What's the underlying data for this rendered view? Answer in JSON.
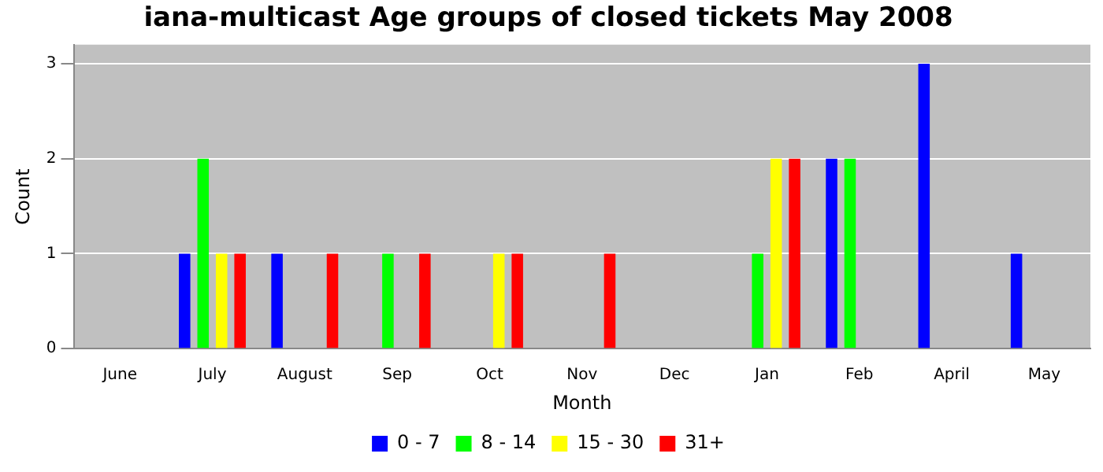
{
  "chart_data": {
    "type": "bar",
    "title": "iana-multicast Age groups of closed tickets May 2008",
    "xlabel": "Month",
    "ylabel": "Count",
    "categories": [
      "June",
      "July",
      "August",
      "Sep",
      "Oct",
      "Nov",
      "Dec",
      "Jan",
      "Feb",
      "April",
      "May"
    ],
    "series": [
      {
        "name": "0 - 7",
        "color": "#0000ff",
        "values": [
          0,
          1,
          1,
          0,
          0,
          0,
          0,
          0,
          2,
          3,
          1
        ]
      },
      {
        "name": "8 - 14",
        "color": "#00ff00",
        "values": [
          0,
          2,
          0,
          1,
          0,
          0,
          0,
          1,
          2,
          0,
          0
        ]
      },
      {
        "name": "15 - 30",
        "color": "#ffff00",
        "values": [
          0,
          1,
          0,
          0,
          1,
          0,
          0,
          2,
          0,
          0,
          0
        ]
      },
      {
        "name": "31+",
        "color": "#ff0000",
        "values": [
          0,
          1,
          1,
          1,
          1,
          1,
          0,
          2,
          0,
          0,
          0
        ]
      }
    ],
    "ylim": [
      0,
      3.2
    ],
    "yticks": [
      0,
      1,
      2,
      3
    ],
    "grid": "y",
    "legend": "bottom"
  }
}
